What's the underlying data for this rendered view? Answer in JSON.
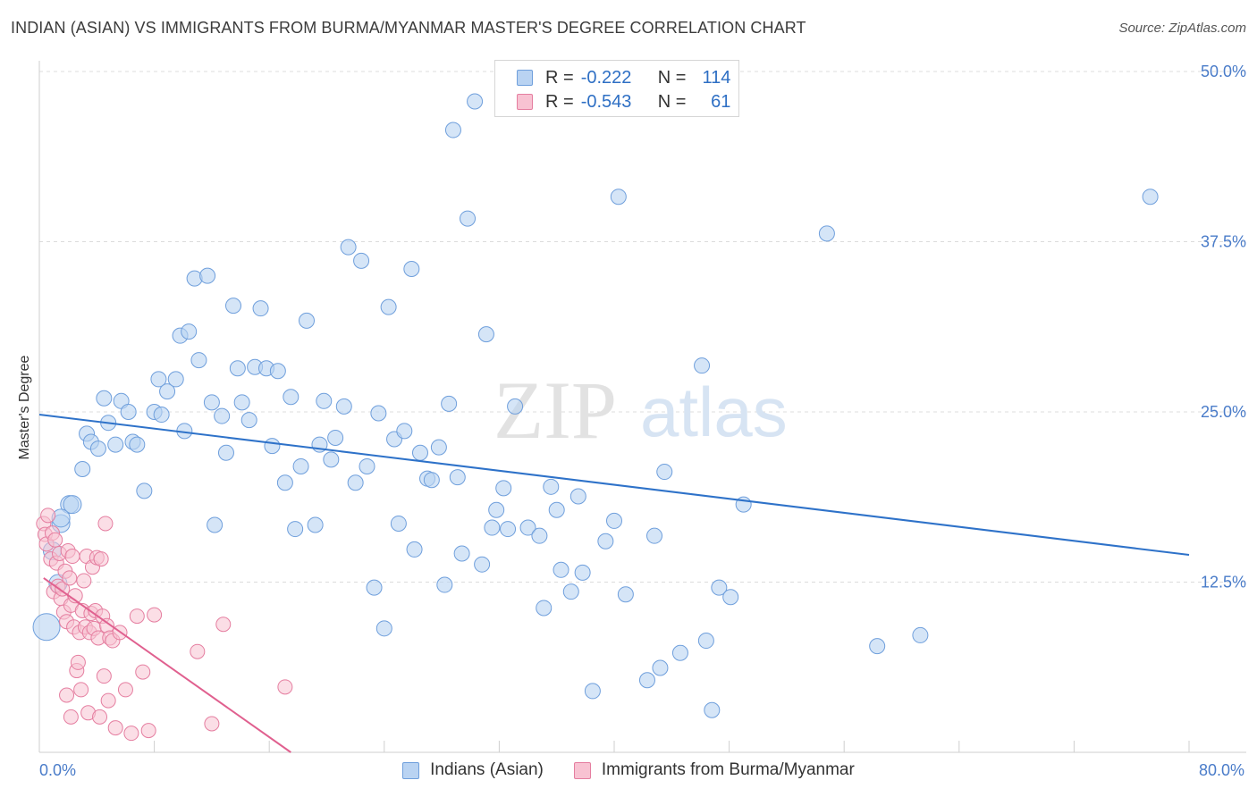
{
  "title": "INDIAN (ASIAN) VS IMMIGRANTS FROM BURMA/MYANMAR MASTER'S DEGREE CORRELATION CHART",
  "source": "Source: ZipAtlas.com",
  "watermark": {
    "zip": "ZIP",
    "atlas": "atlas"
  },
  "colors": {
    "blue": "#6f9fdc",
    "blue_fill": "#b9d3f2",
    "blue_line": "#2e72c9",
    "pink": "#e57ea0",
    "pink_fill": "#f8c2d2",
    "pink_line": "#e0608f",
    "axis_label": "#4a7cc9"
  },
  "legend": {
    "row1": {
      "r_label": "R =",
      "r_value": "-0.222",
      "n_label": "N =",
      "n_value": "114"
    },
    "row2": {
      "r_label": "R =",
      "r_value": "-0.543",
      "n_label": "N =",
      "n_value": "61"
    }
  },
  "bottom_legend": {
    "series1": "Indians (Asian)",
    "series2": "Immigrants from Burma/Myanmar"
  },
  "chart_data": {
    "type": "scatter",
    "title": "INDIAN (ASIAN) VS IMMIGRANTS FROM BURMA/MYANMAR MASTER'S DEGREE CORRELATION CHART",
    "xlabel": "",
    "ylabel": "Master's Degree",
    "xlim": [
      0,
      80
    ],
    "ylim": [
      0,
      50
    ],
    "x_tick_labels": [
      "0.0%",
      "80.0%"
    ],
    "y_ticks": [
      12.5,
      25.0,
      37.5,
      50.0
    ],
    "y_tick_labels": [
      "12.5%",
      "25.0%",
      "37.5%",
      "50.0%"
    ],
    "series": [
      {
        "name": "Indians (Asian)",
        "r": -0.222,
        "n": 114,
        "trend": {
          "x": [
            0,
            80
          ],
          "y": [
            24.8,
            14.5
          ]
        },
        "points": [
          [
            0.5,
            9.2
          ],
          [
            1.5,
            16.8
          ],
          [
            2.1,
            18.2
          ],
          [
            1.3,
            12.4
          ],
          [
            0.9,
            14.8
          ],
          [
            2.3,
            18.2
          ],
          [
            1.5,
            17.2
          ],
          [
            3.0,
            20.8
          ],
          [
            3.3,
            23.4
          ],
          [
            3.6,
            22.8
          ],
          [
            4.1,
            22.3
          ],
          [
            4.5,
            26.0
          ],
          [
            4.8,
            24.2
          ],
          [
            5.3,
            22.6
          ],
          [
            5.7,
            25.8
          ],
          [
            6.2,
            25.0
          ],
          [
            6.5,
            22.8
          ],
          [
            6.8,
            22.6
          ],
          [
            7.3,
            19.2
          ],
          [
            8.0,
            25.0
          ],
          [
            8.3,
            27.4
          ],
          [
            8.5,
            24.8
          ],
          [
            8.9,
            26.5
          ],
          [
            9.5,
            27.4
          ],
          [
            9.8,
            30.6
          ],
          [
            10.1,
            23.6
          ],
          [
            10.4,
            30.9
          ],
          [
            10.8,
            34.8
          ],
          [
            11.1,
            28.8
          ],
          [
            11.7,
            35.0
          ],
          [
            12.0,
            25.7
          ],
          [
            12.2,
            16.7
          ],
          [
            12.7,
            24.7
          ],
          [
            13.0,
            22.0
          ],
          [
            13.5,
            32.8
          ],
          [
            13.8,
            28.2
          ],
          [
            14.1,
            25.7
          ],
          [
            14.6,
            24.4
          ],
          [
            15.0,
            28.3
          ],
          [
            15.4,
            32.6
          ],
          [
            15.8,
            28.2
          ],
          [
            16.2,
            22.5
          ],
          [
            16.6,
            28.0
          ],
          [
            17.1,
            19.8
          ],
          [
            17.5,
            26.1
          ],
          [
            17.8,
            16.4
          ],
          [
            18.2,
            21.0
          ],
          [
            18.6,
            31.7
          ],
          [
            19.2,
            16.7
          ],
          [
            19.5,
            22.6
          ],
          [
            19.8,
            25.8
          ],
          [
            20.3,
            21.5
          ],
          [
            20.6,
            23.1
          ],
          [
            21.2,
            25.4
          ],
          [
            21.5,
            37.1
          ],
          [
            22.0,
            19.8
          ],
          [
            22.4,
            36.1
          ],
          [
            22.8,
            21.0
          ],
          [
            23.3,
            12.1
          ],
          [
            23.6,
            24.9
          ],
          [
            24.0,
            9.1
          ],
          [
            24.3,
            32.7
          ],
          [
            24.7,
            23.0
          ],
          [
            25.0,
            16.8
          ],
          [
            25.4,
            23.6
          ],
          [
            25.9,
            35.5
          ],
          [
            26.1,
            14.9
          ],
          [
            26.5,
            22.0
          ],
          [
            27.0,
            20.1
          ],
          [
            27.3,
            20.0
          ],
          [
            27.8,
            22.4
          ],
          [
            28.2,
            12.3
          ],
          [
            28.5,
            25.6
          ],
          [
            28.8,
            45.7
          ],
          [
            29.1,
            20.2
          ],
          [
            29.4,
            14.6
          ],
          [
            29.8,
            39.2
          ],
          [
            30.3,
            47.8
          ],
          [
            30.8,
            13.8
          ],
          [
            31.1,
            30.7
          ],
          [
            31.5,
            16.5
          ],
          [
            31.8,
            17.8
          ],
          [
            32.3,
            19.4
          ],
          [
            32.6,
            16.4
          ],
          [
            33.1,
            25.4
          ],
          [
            34.0,
            16.5
          ],
          [
            34.8,
            15.9
          ],
          [
            35.1,
            10.6
          ],
          [
            35.6,
            19.5
          ],
          [
            36.0,
            17.8
          ],
          [
            36.3,
            13.4
          ],
          [
            37.0,
            11.8
          ],
          [
            37.5,
            18.8
          ],
          [
            37.8,
            13.2
          ],
          [
            38.5,
            4.5
          ],
          [
            39.4,
            15.5
          ],
          [
            40.0,
            17.0
          ],
          [
            40.3,
            40.8
          ],
          [
            40.8,
            11.6
          ],
          [
            42.3,
            5.3
          ],
          [
            42.8,
            15.9
          ],
          [
            43.2,
            6.2
          ],
          [
            43.5,
            20.6
          ],
          [
            44.6,
            7.3
          ],
          [
            46.1,
            28.4
          ],
          [
            46.4,
            8.2
          ],
          [
            46.8,
            3.1
          ],
          [
            47.3,
            12.1
          ],
          [
            48.1,
            11.4
          ],
          [
            49.0,
            18.2
          ],
          [
            54.8,
            38.1
          ],
          [
            58.3,
            7.8
          ],
          [
            61.3,
            8.6
          ],
          [
            77.3,
            40.8
          ]
        ]
      },
      {
        "name": "Immigrants from Burma/Myanmar",
        "r": -0.543,
        "n": 61,
        "trend": {
          "x": [
            0.3,
            17.5
          ],
          "y": [
            12.8,
            0
          ]
        },
        "points": [
          [
            0.3,
            16.8
          ],
          [
            0.4,
            16.0
          ],
          [
            0.5,
            15.3
          ],
          [
            0.6,
            17.4
          ],
          [
            0.8,
            14.2
          ],
          [
            0.9,
            16.1
          ],
          [
            1.0,
            11.8
          ],
          [
            1.1,
            15.6
          ],
          [
            1.2,
            13.9
          ],
          [
            1.3,
            12.2
          ],
          [
            1.4,
            14.6
          ],
          [
            1.5,
            11.3
          ],
          [
            1.6,
            12.0
          ],
          [
            1.7,
            10.3
          ],
          [
            1.8,
            13.3
          ],
          [
            1.9,
            9.6
          ],
          [
            2.0,
            14.8
          ],
          [
            2.1,
            12.8
          ],
          [
            2.2,
            10.8
          ],
          [
            2.3,
            14.4
          ],
          [
            2.4,
            9.2
          ],
          [
            2.5,
            11.5
          ],
          [
            2.6,
            6.0
          ],
          [
            2.7,
            6.6
          ],
          [
            2.8,
            8.8
          ],
          [
            2.9,
            4.6
          ],
          [
            3.0,
            10.4
          ],
          [
            3.1,
            12.6
          ],
          [
            3.2,
            9.2
          ],
          [
            3.3,
            14.4
          ],
          [
            3.4,
            2.9
          ],
          [
            3.5,
            8.8
          ],
          [
            3.6,
            10.2
          ],
          [
            3.7,
            13.6
          ],
          [
            3.8,
            9.1
          ],
          [
            3.9,
            10.4
          ],
          [
            4.0,
            14.3
          ],
          [
            4.1,
            8.4
          ],
          [
            4.2,
            2.6
          ],
          [
            4.3,
            14.2
          ],
          [
            4.4,
            10.0
          ],
          [
            4.5,
            5.6
          ],
          [
            4.6,
            16.8
          ],
          [
            4.7,
            9.3
          ],
          [
            4.8,
            3.8
          ],
          [
            4.9,
            8.4
          ],
          [
            5.1,
            8.2
          ],
          [
            5.3,
            1.8
          ],
          [
            5.6,
            8.8
          ],
          [
            6.0,
            4.6
          ],
          [
            6.4,
            1.4
          ],
          [
            6.8,
            10.0
          ],
          [
            7.2,
            5.9
          ],
          [
            7.6,
            1.6
          ],
          [
            8.0,
            10.1
          ],
          [
            11.0,
            7.4
          ],
          [
            12.0,
            2.1
          ],
          [
            12.8,
            9.4
          ],
          [
            17.1,
            4.8
          ],
          [
            2.2,
            2.6
          ],
          [
            1.9,
            4.2
          ]
        ]
      }
    ]
  }
}
